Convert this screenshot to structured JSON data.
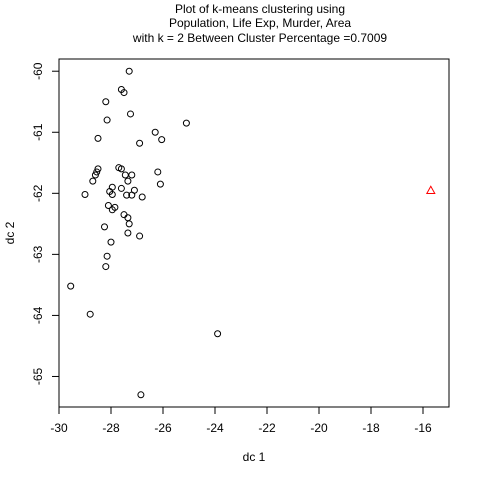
{
  "chart_data": {
    "type": "scatter",
    "title_lines": [
      "Plot of k-means clustering using",
      "Population, Life Exp, Murder, Area",
      "with  k = 2 Between Cluster Percentage =0.7009"
    ],
    "xlabel": "dc 1",
    "ylabel": "dc 2",
    "xlim": [
      -30.0,
      -15.0
    ],
    "ylim": [
      -65.5,
      -59.8
    ],
    "xticks": [
      -30,
      -28,
      -26,
      -24,
      -22,
      -20,
      -18,
      -16
    ],
    "yticks": [
      -60,
      -61,
      -62,
      -63,
      -64,
      -65
    ],
    "grid": false,
    "legend": "none",
    "colors": {
      "cluster1": "#000000",
      "cluster2": "#ff0000"
    },
    "series": [
      {
        "marker": "circle",
        "color": "#000000",
        "points": [
          [
            -27.3,
            -60.0
          ],
          [
            -27.6,
            -60.3
          ],
          [
            -27.5,
            -60.35
          ],
          [
            -28.2,
            -60.5
          ],
          [
            -27.25,
            -60.7
          ],
          [
            -28.15,
            -60.8
          ],
          [
            -25.1,
            -60.85
          ],
          [
            -26.3,
            -61.0
          ],
          [
            -28.5,
            -61.1
          ],
          [
            -26.05,
            -61.12
          ],
          [
            -26.9,
            -61.18
          ],
          [
            -28.5,
            -61.6
          ],
          [
            -27.7,
            -61.58
          ],
          [
            -27.6,
            -61.6
          ],
          [
            -28.55,
            -61.65
          ],
          [
            -28.6,
            -61.7
          ],
          [
            -26.2,
            -61.65
          ],
          [
            -27.45,
            -61.7
          ],
          [
            -27.2,
            -61.7
          ],
          [
            -28.7,
            -61.8
          ],
          [
            -27.35,
            -61.8
          ],
          [
            -26.1,
            -61.85
          ],
          [
            -27.95,
            -61.9
          ],
          [
            -27.6,
            -61.92
          ],
          [
            -27.1,
            -61.95
          ],
          [
            -28.05,
            -61.97
          ],
          [
            -27.95,
            -62.02
          ],
          [
            -27.4,
            -62.03
          ],
          [
            -27.2,
            -62.03
          ],
          [
            -29.0,
            -62.02
          ],
          [
            -26.8,
            -62.06
          ],
          [
            -28.1,
            -62.2
          ],
          [
            -27.85,
            -62.23
          ],
          [
            -27.95,
            -62.27
          ],
          [
            -27.5,
            -62.35
          ],
          [
            -27.35,
            -62.4
          ],
          [
            -27.3,
            -62.5
          ],
          [
            -28.25,
            -62.55
          ],
          [
            -27.35,
            -62.65
          ],
          [
            -26.9,
            -62.7
          ],
          [
            -28.0,
            -62.8
          ],
          [
            -28.15,
            -63.03
          ],
          [
            -28.2,
            -63.2
          ],
          [
            -29.55,
            -63.52
          ],
          [
            -28.8,
            -63.98
          ],
          [
            -23.9,
            -64.3
          ],
          [
            -26.85,
            -65.3
          ]
        ]
      },
      {
        "marker": "triangle",
        "color": "#ff0000",
        "points": [
          [
            -15.7,
            -61.95
          ]
        ]
      }
    ]
  }
}
